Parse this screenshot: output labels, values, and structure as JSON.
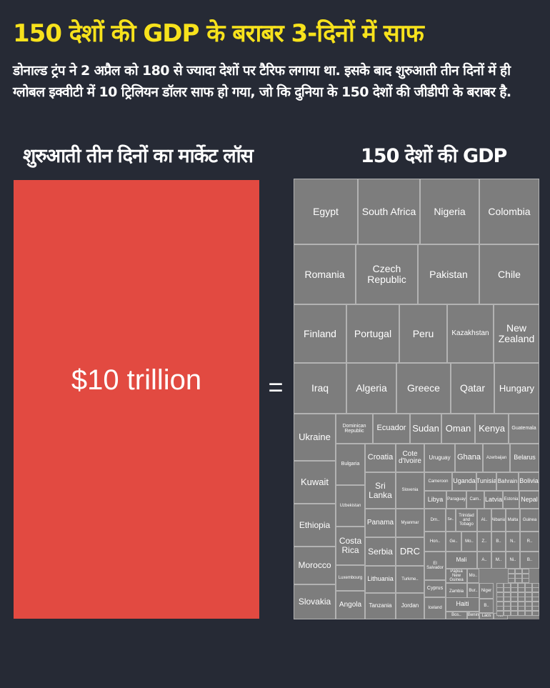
{
  "title": "150 देशों की GDP के बराबर 3-दिनों में साफ",
  "subtitle_lines": [
    "डोनाल्ड ट्रंप ने 2 अप्रैल को 180 से ज्यादा देशों पर टैरिफ लगाया था. इसके बाद शुरुआती तीन दिनों में ही",
    "ग्लोबल इक्वीटी में 10 ट्रिलियन डॉलर साफ हो गया, जो कि दुनिया के 150 देशों की जीडीपी के बराबर है."
  ],
  "left_heading": "शुरुआती तीन दिनों का मार्केट लॉस",
  "right_heading": "150 देशों की GDP",
  "loss_value": "$10 trillion",
  "equals": "=",
  "colors": {
    "background": "#262a35",
    "title": "#f7e21c",
    "loss": "#e24a41",
    "tile": "#7d7d7d",
    "tile_border": "#b3b3b3"
  },
  "treemap": {
    "countries": [
      "Egypt",
      "South Africa",
      "Nigeria",
      "Colombia",
      "Romania",
      "Czech Republic",
      "Pakistan",
      "Chile",
      "Finland",
      "Portugal",
      "Peru",
      "Kazakhstan",
      "New Zealand",
      "Iraq",
      "Algeria",
      "Greece",
      "Qatar",
      "Hungary",
      "Ukraine",
      "Dominican Republic",
      "Ecuador",
      "Sudan",
      "Oman",
      "Kenya",
      "Guatemala",
      "Kuwait",
      "Bulgaria",
      "Croatia",
      "Cote d'Ivoire",
      "Uruguay",
      "Ghana",
      "Azerbaijan",
      "Belarus",
      "Uzbekistan",
      "Sri Lanka",
      "Slovenia",
      "Cameroon",
      "Uganda",
      "Tunisia",
      "Bahrain",
      "Bolivia",
      "Libya",
      "Paraguay",
      "Cam..",
      "Latvia",
      "Estonia",
      "Nepal",
      "Ethiopia",
      "Costa Rica",
      "Panama",
      "Myanmar",
      "Dm..",
      "Se..",
      "Trinidad and Tobago",
      "Al..",
      "Albania",
      "Malta",
      "Guinea",
      "Serbia",
      "DRC",
      "Hon..",
      "Ge..",
      "Mo..",
      "Z..",
      "B..",
      "N..",
      "R..",
      "Mali",
      "A..",
      "M..",
      "Ni..",
      "B..",
      "Morocco",
      "Luxembourg",
      "Lithuania",
      "Turkme..",
      "El Salvador",
      "Papua New Guinea",
      "Mo..",
      "Bur..",
      "Niger",
      "Cyprus",
      "Zambia",
      "Haiti",
      "B..",
      "Slovakia",
      "Angola",
      "Tanzania",
      "Jordan",
      "Iceland",
      "Bos..",
      "Benin",
      "Laos",
      "K.."
    ]
  }
}
